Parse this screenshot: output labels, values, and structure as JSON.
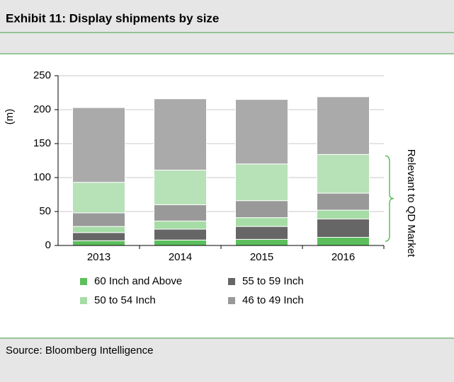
{
  "chart_data": {
    "type": "stacked-bar",
    "title": "Exhibit 11: Display shipments by size",
    "ylabel": "(m)",
    "source": "Source: Bloomberg Intelligence",
    "annotation": "Relevant to QD Market",
    "categories": [
      "2013",
      "2014",
      "2015",
      "2016"
    ],
    "series": [
      {
        "name": "60 Inch and Above",
        "color": "#5cbf5c",
        "values": [
          7,
          8,
          9,
          12
        ]
      },
      {
        "name": "55 to 59 Inch",
        "color": "#666666",
        "values": [
          12,
          16,
          19,
          27
        ]
      },
      {
        "name": "50 to 54 Inch",
        "color": "#a6dca6",
        "values": [
          9,
          12,
          13,
          13
        ]
      },
      {
        "name": "46 to 49 Inch",
        "color": "#999999",
        "values": [
          20,
          24,
          25,
          25
        ]
      },
      {
        "color": "#b7e1b7",
        "values": [
          45,
          51,
          54,
          57
        ]
      },
      {
        "color": "#aaaaaa",
        "values": [
          110,
          105,
          95,
          85
        ]
      }
    ],
    "ylim": [
      0,
      250
    ],
    "yticks": [
      0,
      50,
      100,
      150,
      200,
      250
    ],
    "grid": true
  }
}
